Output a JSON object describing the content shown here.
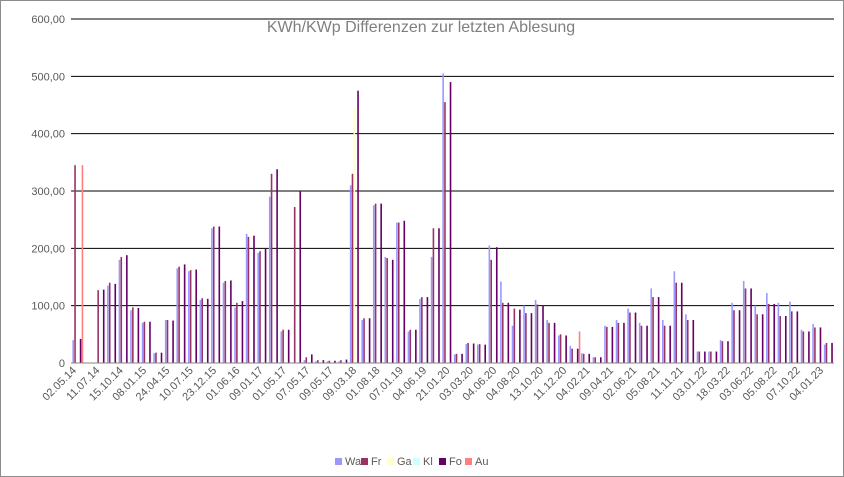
{
  "chart_data": {
    "type": "bar",
    "title": "KWh/KWp Differenzen zur letzten Ablesung",
    "xlabel": "",
    "ylabel": "",
    "ylim": [
      0,
      600
    ],
    "yticks": [
      "0",
      "100,00",
      "200,00",
      "300,00",
      "400,00",
      "500,00",
      "600,00"
    ],
    "ytick_values": [
      0,
      100,
      200,
      300,
      400,
      500,
      600
    ],
    "grid": true,
    "legend_position": "bottom",
    "x_tick_labels": [
      "02.05.14",
      "11.07.14",
      "15.10.14",
      "08.01.15",
      "24.04.15",
      "10.07.15",
      "23.12.15",
      "01.06.16",
      "09.01.17",
      "01.05.17",
      "07.05.17",
      "09.05.17",
      "09.03.18",
      "01.08.18",
      "07.01.19",
      "04.06.19",
      "21.01.20",
      "03.03.20",
      "04.06.20",
      "04.08.20",
      "13.10.20",
      "11.12.20",
      "04.02.21",
      "09.04.21",
      "02.06.21",
      "05.08.21",
      "11.11.21",
      "03.01.22",
      "18.03.22",
      "03.06.22",
      "05.08.22",
      "07.10.22",
      "04.01.23"
    ],
    "series": [
      {
        "name": "Wa",
        "color": "#9999ff"
      },
      {
        "name": "Fr",
        "color": "#993366"
      },
      {
        "name": "Ga",
        "color": "#ffffcc"
      },
      {
        "name": "Kl",
        "color": "#ccffff"
      },
      {
        "name": "Fo",
        "color": "#660066"
      },
      {
        "name": "Au",
        "color": "#ff8080"
      }
    ],
    "groups": [
      {
        "idx": 0,
        "values": [
          40,
          345,
          0,
          0,
          42,
          345
        ]
      },
      {
        "idx": 2,
        "values": [
          0,
          127,
          0,
          0,
          128,
          0
        ]
      },
      {
        "idx": 3,
        "values": [
          135,
          140,
          0,
          0,
          138,
          0
        ]
      },
      {
        "idx": 4,
        "values": [
          180,
          185,
          0,
          0,
          188,
          0
        ]
      },
      {
        "idx": 5,
        "values": [
          92,
          97,
          0,
          0,
          96,
          0
        ]
      },
      {
        "idx": 6,
        "values": [
          70,
          72,
          0,
          0,
          72,
          0
        ]
      },
      {
        "idx": 7,
        "values": [
          17,
          18,
          0,
          0,
          18,
          0
        ]
      },
      {
        "idx": 8,
        "values": [
          75,
          75,
          0,
          0,
          74,
          0
        ]
      },
      {
        "idx": 9,
        "values": [
          165,
          168,
          0,
          0,
          172,
          0
        ]
      },
      {
        "idx": 10,
        "values": [
          160,
          162,
          0,
          0,
          163,
          0
        ]
      },
      {
        "idx": 11,
        "values": [
          110,
          113,
          0,
          0,
          112,
          0
        ]
      },
      {
        "idx": 12,
        "values": [
          235,
          238,
          0,
          0,
          238,
          0
        ]
      },
      {
        "idx": 13,
        "values": [
          140,
          143,
          0,
          0,
          144,
          0
        ]
      },
      {
        "idx": 14,
        "values": [
          97,
          105,
          0,
          0,
          108,
          0
        ]
      },
      {
        "idx": 15,
        "values": [
          225,
          220,
          0,
          0,
          222,
          0
        ]
      },
      {
        "idx": 16,
        "values": [
          192,
          195,
          0,
          0,
          200,
          0
        ]
      },
      {
        "idx": 17,
        "values": [
          290,
          330,
          0,
          0,
          338,
          0
        ]
      },
      {
        "idx": 18,
        "values": [
          55,
          58,
          0,
          0,
          58,
          0
        ]
      },
      {
        "idx": 19,
        "values": [
          0,
          272,
          0,
          0,
          300,
          0
        ]
      },
      {
        "idx": 20,
        "values": [
          5,
          10,
          0,
          0,
          15,
          0
        ]
      },
      {
        "idx": 21,
        "values": [
          3,
          5,
          0,
          0,
          5,
          0
        ]
      },
      {
        "idx": 22,
        "values": [
          3,
          4,
          0,
          0,
          4,
          0
        ]
      },
      {
        "idx": 23,
        "values": [
          3,
          5,
          0,
          0,
          6,
          0
        ]
      },
      {
        "idx": 24,
        "values": [
          310,
          330,
          445,
          0,
          475,
          0
        ]
      },
      {
        "idx": 25,
        "values": [
          75,
          78,
          0,
          0,
          78,
          0
        ]
      },
      {
        "idx": 26,
        "values": [
          275,
          278,
          0,
          0,
          278,
          0
        ]
      },
      {
        "idx": 27,
        "values": [
          185,
          183,
          0,
          0,
          180,
          0
        ]
      },
      {
        "idx": 28,
        "values": [
          245,
          245,
          0,
          0,
          248,
          0
        ]
      },
      {
        "idx": 29,
        "values": [
          55,
          58,
          0,
          0,
          58,
          0
        ]
      },
      {
        "idx": 30,
        "values": [
          112,
          115,
          0,
          0,
          115,
          0
        ]
      },
      {
        "idx": 31,
        "values": [
          185,
          235,
          0,
          0,
          235,
          0
        ]
      },
      {
        "idx": 32,
        "values": [
          505,
          455,
          0,
          0,
          490,
          0
        ]
      },
      {
        "idx": 33,
        "values": [
          15,
          16,
          0,
          0,
          16,
          0
        ]
      },
      {
        "idx": 34,
        "values": [
          33,
          35,
          0,
          0,
          34,
          0
        ]
      },
      {
        "idx": 35,
        "values": [
          32,
          33,
          0,
          0,
          32,
          0
        ]
      },
      {
        "idx": 36,
        "values": [
          205,
          180,
          0,
          0,
          202,
          0
        ]
      },
      {
        "idx": 37,
        "values": [
          142,
          105,
          0,
          0,
          105,
          0
        ]
      },
      {
        "idx": 38,
        "values": [
          65,
          95,
          0,
          0,
          93,
          0
        ]
      },
      {
        "idx": 39,
        "values": [
          100,
          87,
          0,
          0,
          87,
          0
        ]
      },
      {
        "idx": 40,
        "values": [
          110,
          102,
          0,
          0,
          100,
          0
        ]
      },
      {
        "idx": 41,
        "values": [
          75,
          70,
          0,
          0,
          70,
          0
        ]
      },
      {
        "idx": 42,
        "values": [
          48,
          50,
          0,
          0,
          48,
          0
        ]
      },
      {
        "idx": 43,
        "values": [
          30,
          25,
          0,
          0,
          25,
          55
        ]
      },
      {
        "idx": 44,
        "values": [
          17,
          16,
          0,
          0,
          16,
          0
        ]
      },
      {
        "idx": 45,
        "values": [
          10,
          10,
          0,
          0,
          10,
          0
        ]
      },
      {
        "idx": 46,
        "values": [
          65,
          63,
          0,
          0,
          63,
          0
        ]
      },
      {
        "idx": 47,
        "values": [
          75,
          70,
          0,
          0,
          70,
          0
        ]
      },
      {
        "idx": 48,
        "values": [
          95,
          88,
          0,
          0,
          88,
          0
        ]
      },
      {
        "idx": 49,
        "values": [
          70,
          65,
          0,
          0,
          65,
          0
        ]
      },
      {
        "idx": 50,
        "values": [
          130,
          115,
          0,
          0,
          115,
          0
        ]
      },
      {
        "idx": 51,
        "values": [
          75,
          65,
          0,
          0,
          65,
          0
        ]
      },
      {
        "idx": 52,
        "values": [
          160,
          140,
          0,
          0,
          140,
          0
        ]
      },
      {
        "idx": 53,
        "values": [
          85,
          75,
          0,
          0,
          75,
          0
        ]
      },
      {
        "idx": 54,
        "values": [
          20,
          20,
          0,
          0,
          20,
          0
        ]
      },
      {
        "idx": 55,
        "values": [
          20,
          20,
          0,
          0,
          20,
          0
        ]
      },
      {
        "idx": 56,
        "values": [
          40,
          38,
          0,
          0,
          38,
          0
        ]
      },
      {
        "idx": 57,
        "values": [
          105,
          92,
          0,
          0,
          92,
          0
        ]
      },
      {
        "idx": 58,
        "values": [
          143,
          130,
          0,
          0,
          130,
          0
        ]
      },
      {
        "idx": 59,
        "values": [
          100,
          85,
          0,
          0,
          85,
          0
        ]
      },
      {
        "idx": 60,
        "values": [
          122,
          103,
          0,
          0,
          103,
          0
        ]
      },
      {
        "idx": 61,
        "values": [
          105,
          82,
          0,
          0,
          82,
          0
        ]
      },
      {
        "idx": 62,
        "values": [
          107,
          90,
          0,
          0,
          90,
          0
        ]
      },
      {
        "idx": 63,
        "values": [
          58,
          55,
          0,
          0,
          55,
          0
        ]
      },
      {
        "idx": 64,
        "values": [
          68,
          62,
          0,
          0,
          62,
          0
        ]
      },
      {
        "idx": 65,
        "values": [
          32,
          35,
          0,
          0,
          35,
          0
        ]
      }
    ]
  }
}
